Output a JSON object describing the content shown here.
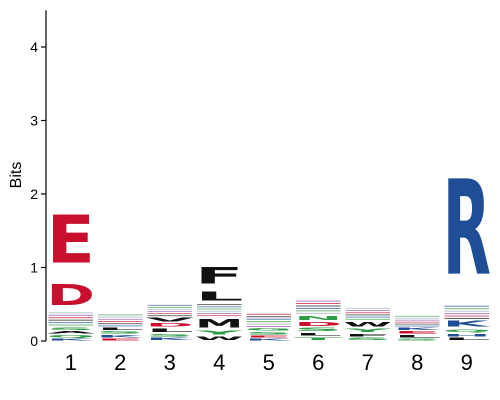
{
  "chart_data": {
    "type": "sequence-logo",
    "ylabel": "Bits",
    "ylim": [
      0,
      4.5
    ],
    "yticks": [
      "0",
      "1",
      "2",
      "3",
      "4"
    ],
    "positions": [
      "1",
      "2",
      "3",
      "4",
      "5",
      "6",
      "7",
      "8",
      "9"
    ],
    "colors": {
      "acidic": "#c8102e",
      "basic": "#1f4e96",
      "hydrophobic": "#111111",
      "polar": "#2e9c45",
      "other": "#8a4fb5",
      "minor": "#9aa8b8"
    },
    "columns": [
      {
        "position": "1",
        "letters": [
          {
            "aa": "E",
            "bits": 1.05,
            "group": "acidic"
          },
          {
            "aa": "D",
            "bits": 0.45,
            "group": "acidic"
          },
          {
            "aa": "S",
            "bits": 0.06,
            "group": "polar"
          },
          {
            "aa": "Q",
            "bits": 0.05,
            "group": "polar"
          },
          {
            "aa": "A",
            "bits": 0.05,
            "group": "hydrophobic"
          },
          {
            "aa": "K",
            "bits": 0.04,
            "group": "basic"
          },
          {
            "aa": "other",
            "bits": 0.2,
            "group": "minor"
          }
        ]
      },
      {
        "position": "2",
        "letters": [
          {
            "aa": "K",
            "bits": 0.05,
            "group": "basic"
          },
          {
            "aa": "S",
            "bits": 0.05,
            "group": "polar"
          },
          {
            "aa": "L",
            "bits": 0.05,
            "group": "hydrophobic"
          },
          {
            "aa": "E",
            "bits": 0.04,
            "group": "acidic"
          },
          {
            "aa": "other",
            "bits": 0.18,
            "group": "minor"
          }
        ]
      },
      {
        "position": "3",
        "letters": [
          {
            "aa": "V",
            "bits": 0.08,
            "group": "hydrophobic"
          },
          {
            "aa": "L",
            "bits": 0.07,
            "group": "hydrophobic"
          },
          {
            "aa": "D",
            "bits": 0.07,
            "group": "acidic"
          },
          {
            "aa": "S",
            "bits": 0.06,
            "group": "polar"
          },
          {
            "aa": "K",
            "bits": 0.05,
            "group": "basic"
          },
          {
            "aa": "other",
            "bits": 0.17,
            "group": "minor"
          }
        ]
      },
      {
        "position": "4",
        "letters": [
          {
            "aa": "F",
            "bits": 0.35,
            "group": "hydrophobic"
          },
          {
            "aa": "L",
            "bits": 0.2,
            "group": "hydrophobic"
          },
          {
            "aa": "M",
            "bits": 0.18,
            "group": "hydrophobic"
          },
          {
            "aa": "Y",
            "bits": 0.08,
            "group": "polar"
          },
          {
            "aa": "W",
            "bits": 0.07,
            "group": "hydrophobic"
          },
          {
            "aa": "other",
            "bits": 0.18,
            "group": "minor"
          }
        ]
      },
      {
        "position": "5",
        "letters": [
          {
            "aa": "S",
            "bits": 0.05,
            "group": "polar"
          },
          {
            "aa": "G",
            "bits": 0.05,
            "group": "polar"
          },
          {
            "aa": "K",
            "bits": 0.04,
            "group": "basic"
          },
          {
            "aa": "E",
            "bits": 0.04,
            "group": "acidic"
          },
          {
            "aa": "other",
            "bits": 0.2,
            "group": "minor"
          }
        ]
      },
      {
        "position": "6",
        "letters": [
          {
            "aa": "N",
            "bits": 0.09,
            "group": "polar"
          },
          {
            "aa": "D",
            "bits": 0.08,
            "group": "acidic"
          },
          {
            "aa": "S",
            "bits": 0.07,
            "group": "polar"
          },
          {
            "aa": "T",
            "bits": 0.06,
            "group": "polar"
          },
          {
            "aa": "L",
            "bits": 0.06,
            "group": "hydrophobic"
          },
          {
            "aa": "other",
            "bits": 0.2,
            "group": "minor"
          }
        ]
      },
      {
        "position": "7",
        "letters": [
          {
            "aa": "W",
            "bits": 0.1,
            "group": "hydrophobic"
          },
          {
            "aa": "Y",
            "bits": 0.07,
            "group": "polar"
          },
          {
            "aa": "F",
            "bits": 0.06,
            "group": "hydrophobic"
          },
          {
            "aa": "S",
            "bits": 0.05,
            "group": "polar"
          },
          {
            "aa": "other",
            "bits": 0.18,
            "group": "minor"
          }
        ]
      },
      {
        "position": "8",
        "letters": [
          {
            "aa": "L",
            "bits": 0.05,
            "group": "hydrophobic"
          },
          {
            "aa": "E",
            "bits": 0.05,
            "group": "acidic"
          },
          {
            "aa": "K",
            "bits": 0.05,
            "group": "basic"
          },
          {
            "aa": "S",
            "bits": 0.04,
            "group": "polar"
          },
          {
            "aa": "other",
            "bits": 0.16,
            "group": "minor"
          }
        ]
      },
      {
        "position": "9",
        "letters": [
          {
            "aa": "R",
            "bits": 2.08,
            "group": "basic"
          },
          {
            "aa": "K",
            "bits": 0.12,
            "group": "basic"
          },
          {
            "aa": "H",
            "bits": 0.06,
            "group": "basic"
          },
          {
            "aa": "Q",
            "bits": 0.06,
            "group": "polar"
          },
          {
            "aa": "L",
            "bits": 0.05,
            "group": "hydrophobic"
          },
          {
            "aa": "other",
            "bits": 0.2,
            "group": "minor"
          }
        ]
      }
    ]
  }
}
